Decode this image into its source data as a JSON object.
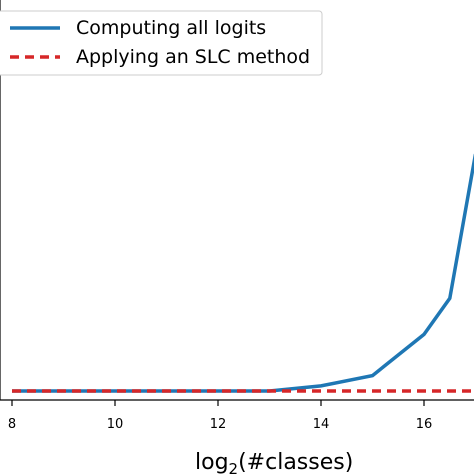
{
  "chart_data": {
    "type": "line",
    "xlabel_main": "log",
    "xlabel_sub": "2",
    "xlabel_rest": "(#classes)",
    "x_ticks": [
      8,
      10,
      12,
      14,
      16
    ],
    "x_tick_labels": [
      "8",
      "10",
      "12",
      "14",
      "16"
    ],
    "grid": false,
    "legend_position": "top-left",
    "series": [
      {
        "name": "Computing all logits",
        "color": "#1f77b4",
        "style": "solid",
        "x": [
          8,
          9,
          10,
          11,
          12,
          13,
          14,
          15,
          16,
          16.5,
          17
        ],
        "y": [
          0.02,
          0.02,
          0.02,
          0.02,
          0.02,
          0.02,
          0.025,
          0.035,
          0.075,
          0.11,
          0.25
        ]
      },
      {
        "name": "Applying an SLC method",
        "color": "#d62728",
        "style": "dashed",
        "x": [
          8,
          9,
          10,
          11,
          12,
          13,
          14,
          15,
          16,
          17
        ],
        "y": [
          0.02,
          0.02,
          0.02,
          0.02,
          0.02,
          0.02,
          0.02,
          0.02,
          0.02,
          0.02
        ]
      }
    ]
  }
}
